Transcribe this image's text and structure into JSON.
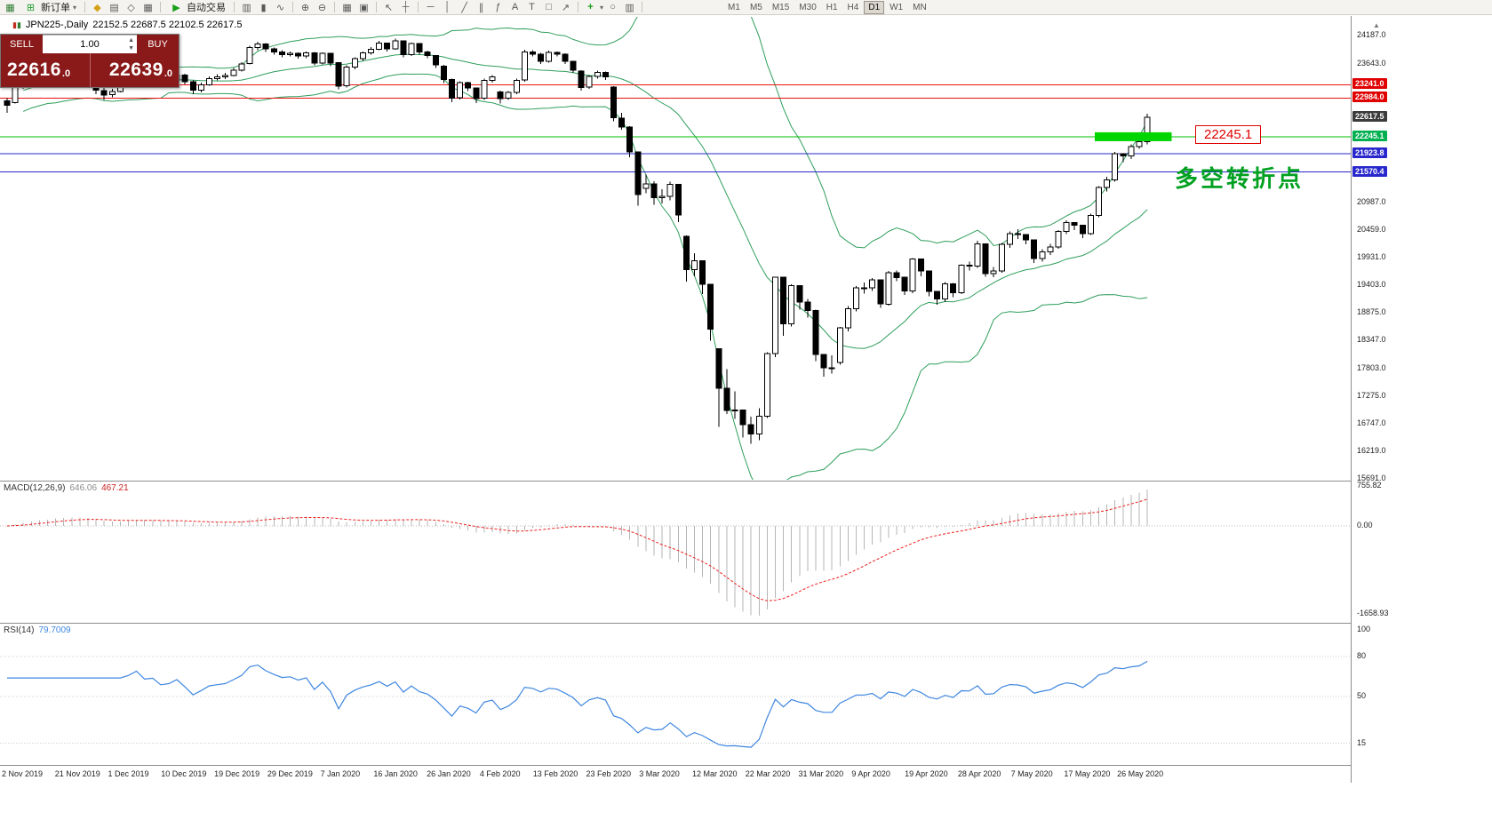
{
  "toolbar": {
    "new_order_label": "新订单",
    "autotrade_label": "自动交易",
    "timeframes": [
      "M1",
      "M5",
      "M15",
      "M30",
      "H1",
      "H4",
      "D1",
      "W1",
      "MN"
    ],
    "active_timeframe": "D1"
  },
  "trade_panel": {
    "sell_label": "SELL",
    "buy_label": "BUY",
    "volume": "1.00",
    "sell_price": "22616.0",
    "buy_price": "22639.0",
    "panel_color": "#8a1919"
  },
  "annotations": {
    "price_label": "22245.1",
    "note_text": "多空转折点"
  },
  "price_scale": {
    "labels": [
      {
        "text": "24187.0",
        "value": 24187.0
      },
      {
        "text": "23643.0",
        "value": 23643.0
      },
      {
        "text": "20987.0",
        "value": 20987.0
      },
      {
        "text": "20459.0",
        "value": 20459.0
      },
      {
        "text": "19931.0",
        "value": 19931.0
      },
      {
        "text": "19403.0",
        "value": 19403.0
      },
      {
        "text": "18875.0",
        "value": 18875.0
      },
      {
        "text": "18347.0",
        "value": 18347.0
      },
      {
        "text": "17803.0",
        "value": 17803.0
      },
      {
        "text": "17275.0",
        "value": 17275.0
      },
      {
        "text": "16747.0",
        "value": 16747.0
      },
      {
        "text": "16219.0",
        "value": 16219.0
      },
      {
        "text": "15691.0",
        "value": 15691.0
      }
    ],
    "tags": [
      {
        "text": "23241.0",
        "value": 23241.0,
        "bg": "#e00000",
        "fg": "#ffffff"
      },
      {
        "text": "22984.0",
        "value": 22984.0,
        "bg": "#e00000",
        "fg": "#ffffff"
      },
      {
        "text": "22617.5",
        "value": 22617.5,
        "bg": "#3c3c3c",
        "fg": "#ffffff"
      },
      {
        "text": "22245.1",
        "value": 22245.1,
        "bg": "#00b050",
        "fg": "#ffffff"
      },
      {
        "text": "21923.8",
        "value": 21923.8,
        "bg": "#2828cc",
        "fg": "#ffffff"
      },
      {
        "text": "21570.4",
        "value": 21570.4,
        "bg": "#2828cc",
        "fg": "#ffffff"
      }
    ]
  },
  "chart_data": {
    "type": "candlestick",
    "symbol": "JPN225",
    "timeframe": "Daily",
    "title": "JPN225-,Daily",
    "ohlc_display": "22152.5 22687.5 22102.5 22617.5",
    "last_candle": {
      "open": 22152.5,
      "high": 22687.5,
      "low": 22102.5,
      "close": 22617.5
    },
    "visible_price_range": [
      15550,
      24550
    ],
    "dates": [
      "2 Nov 2019",
      "21 Nov 2019",
      "1 Dec 2019",
      "10 Dec 2019",
      "19 Dec 2019",
      "29 Dec 2019",
      "7 Jan 2020",
      "16 Jan 2020",
      "26 Jan 2020",
      "4 Feb 2020",
      "13 Feb 2020",
      "23 Feb 2020",
      "3 Mar 2020",
      "12 Mar 2020",
      "22 Mar 2020",
      "31 Mar 2020",
      "9 Apr 2020",
      "19 Apr 2020",
      "28 Apr 2020",
      "7 May 2020",
      "17 May 2020",
      "26 May 2020"
    ],
    "hlines": [
      {
        "value": 23241.0,
        "color": "#ee1111"
      },
      {
        "value": 22984.0,
        "color": "#ee1111"
      },
      {
        "value": 22245.1,
        "color": "#00c000"
      },
      {
        "value": 21923.8,
        "color": "#2828cc"
      },
      {
        "value": 21570.4,
        "color": "#2828cc"
      }
    ],
    "highlight_rect": {
      "price": 22245.1,
      "from_candle": 134.5,
      "to_candle": 144,
      "color": "#00d500"
    },
    "indicators": {
      "bollinger": {
        "period": 20,
        "deviation": 2,
        "color": "#2e9e5b"
      },
      "macd": {
        "label": "MACD(12,26,9)",
        "main_value": "646.06",
        "signal_value": "467.21",
        "histogram_color": "#b6b6b6",
        "signal_color": "#ee2020",
        "scale_labels": [
          {
            "text": "755.82",
            "value": 755.82
          },
          {
            "text": "0.00",
            "value": 0
          },
          {
            "text": "-1658.93",
            "value": -1658.93
          }
        ]
      },
      "rsi": {
        "label": "RSI(14)",
        "value": "79.7009",
        "color": "#3e86e0",
        "scale_labels": [
          {
            "text": "100",
            "value": 100
          },
          {
            "text": "80",
            "value": 80
          },
          {
            "text": "50",
            "value": 50
          },
          {
            "text": "15",
            "value": 15
          }
        ],
        "level_lines": [
          80,
          50,
          15
        ]
      }
    },
    "candles": [
      [
        22930,
        22980,
        22705,
        22850
      ],
      [
        22900,
        23290,
        22880,
        23250
      ],
      [
        23255,
        23350,
        23160,
        23300
      ],
      [
        23300,
        23380,
        23250,
        23330
      ],
      [
        23330,
        23430,
        23280,
        23390
      ],
      [
        23390,
        23420,
        23270,
        23330
      ],
      [
        23340,
        23560,
        23310,
        23520
      ],
      [
        23510,
        23550,
        23380,
        23420
      ],
      [
        23420,
        23500,
        23360,
        23450
      ],
      [
        23450,
        23480,
        23330,
        23380
      ],
      [
        23380,
        23400,
        23250,
        23300
      ],
      [
        23290,
        23320,
        23060,
        23140
      ],
      [
        23130,
        23180,
        22950,
        23040
      ],
      [
        23050,
        23160,
        23000,
        23110
      ],
      [
        23110,
        23330,
        23090,
        23290
      ],
      [
        23290,
        23410,
        23260,
        23370
      ],
      [
        23380,
        23550,
        23350,
        23520
      ],
      [
        23520,
        23540,
        23330,
        23380
      ],
      [
        23380,
        23460,
        23340,
        23410
      ],
      [
        23410,
        23430,
        23240,
        23290
      ],
      [
        23290,
        23370,
        23230,
        23320
      ],
      [
        23320,
        23460,
        23290,
        23430
      ],
      [
        23430,
        23450,
        23250,
        23300
      ],
      [
        23300,
        23320,
        23060,
        23140
      ],
      [
        23140,
        23280,
        23090,
        23240
      ],
      [
        23240,
        23400,
        23220,
        23360
      ],
      [
        23360,
        23440,
        23320,
        23390
      ],
      [
        23390,
        23470,
        23350,
        23420
      ],
      [
        23420,
        23560,
        23400,
        23520
      ],
      [
        23520,
        23670,
        23490,
        23640
      ],
      [
        23650,
        23990,
        23630,
        23950
      ],
      [
        23950,
        24060,
        23900,
        24020
      ],
      [
        24020,
        24040,
        23870,
        23930
      ],
      [
        23930,
        23950,
        23820,
        23870
      ],
      [
        23870,
        23900,
        23770,
        23820
      ],
      [
        23820,
        23880,
        23780,
        23840
      ],
      [
        23840,
        23860,
        23740,
        23790
      ],
      [
        23790,
        23880,
        23750,
        23850
      ],
      [
        23850,
        23870,
        23610,
        23660
      ],
      [
        23660,
        23860,
        23630,
        23840
      ],
      [
        23840,
        23850,
        23600,
        23660
      ],
      [
        23660,
        23670,
        23150,
        23210
      ],
      [
        23220,
        23610,
        23190,
        23580
      ],
      [
        23580,
        23770,
        23540,
        23740
      ],
      [
        23740,
        23880,
        23700,
        23850
      ],
      [
        23850,
        23960,
        23820,
        23920
      ],
      [
        23920,
        24080,
        23900,
        24040
      ],
      [
        24040,
        24050,
        23880,
        23930
      ],
      [
        23930,
        24120,
        23910,
        24080
      ],
      [
        24080,
        24090,
        23770,
        23820
      ],
      [
        23820,
        24050,
        23790,
        24030
      ],
      [
        24030,
        24040,
        23820,
        23870
      ],
      [
        23870,
        23890,
        23750,
        23800
      ],
      [
        23800,
        23810,
        23560,
        23620
      ],
      [
        23600,
        23620,
        23270,
        23340
      ],
      [
        23340,
        23360,
        22910,
        22980
      ],
      [
        22990,
        23310,
        22960,
        23280
      ],
      [
        23280,
        23300,
        23120,
        23180
      ],
      [
        23180,
        23190,
        22890,
        22970
      ],
      [
        22980,
        23360,
        22950,
        23320
      ],
      [
        23320,
        23430,
        23280,
        23390
      ],
      [
        23100,
        23130,
        22880,
        22970
      ],
      [
        22980,
        23120,
        22950,
        23090
      ],
      [
        23090,
        23360,
        23060,
        23320
      ],
      [
        23330,
        23910,
        23300,
        23870
      ],
      [
        23870,
        23900,
        23780,
        23830
      ],
      [
        23830,
        23850,
        23640,
        23690
      ],
      [
        23690,
        23890,
        23660,
        23860
      ],
      [
        23860,
        23880,
        23780,
        23830
      ],
      [
        23830,
        23840,
        23640,
        23690
      ],
      [
        23690,
        23700,
        23470,
        23520
      ],
      [
        23500,
        23520,
        23130,
        23190
      ],
      [
        23200,
        23430,
        23160,
        23400
      ],
      [
        23400,
        23510,
        23360,
        23480
      ],
      [
        23480,
        23490,
        23330,
        23390
      ],
      [
        23200,
        23210,
        22540,
        22610
      ],
      [
        22600,
        22700,
        22380,
        22430
      ],
      [
        22430,
        22450,
        21850,
        21950
      ],
      [
        21950,
        21960,
        20920,
        21140
      ],
      [
        21260,
        21520,
        21160,
        21340
      ],
      [
        21340,
        21390,
        20940,
        21080
      ],
      [
        21080,
        21240,
        20970,
        21100
      ],
      [
        21100,
        21380,
        21030,
        21330
      ],
      [
        21330,
        21340,
        20610,
        20750
      ],
      [
        20340,
        20350,
        19470,
        19700
      ],
      [
        19700,
        20010,
        19570,
        19870
      ],
      [
        19870,
        19880,
        19230,
        19420
      ],
      [
        19420,
        19430,
        18340,
        18560
      ],
      [
        18180,
        18190,
        16690,
        17430
      ],
      [
        17430,
        17790,
        16930,
        17000
      ],
      [
        17000,
        17370,
        16840,
        17010
      ],
      [
        17010,
        17020,
        16480,
        16730
      ],
      [
        16730,
        16880,
        16360,
        16550
      ],
      [
        16550,
        17040,
        16430,
        16890
      ],
      [
        16890,
        18120,
        16860,
        18090
      ],
      [
        18090,
        19560,
        18020,
        19550
      ],
      [
        19550,
        19560,
        18430,
        18660
      ],
      [
        18660,
        19420,
        18610,
        19390
      ],
      [
        19390,
        19400,
        18930,
        19080
      ],
      [
        19080,
        19140,
        18780,
        18920
      ],
      [
        18920,
        18930,
        17950,
        18070
      ],
      [
        18070,
        18080,
        17650,
        17820
      ],
      [
        17820,
        18060,
        17710,
        17820
      ],
      [
        17920,
        18600,
        17880,
        18580
      ],
      [
        18580,
        19000,
        18520,
        18950
      ],
      [
        18950,
        19380,
        18900,
        19350
      ],
      [
        19350,
        19450,
        19240,
        19350
      ],
      [
        19350,
        19540,
        19290,
        19500
      ],
      [
        19500,
        19510,
        18970,
        19040
      ],
      [
        19040,
        19670,
        19010,
        19640
      ],
      [
        19640,
        19680,
        19480,
        19550
      ],
      [
        19550,
        19560,
        19210,
        19290
      ],
      [
        19290,
        19920,
        19250,
        19900
      ],
      [
        19900,
        19910,
        19570,
        19670
      ],
      [
        19670,
        19680,
        19190,
        19280
      ],
      [
        19280,
        19290,
        19030,
        19140
      ],
      [
        19140,
        19460,
        19080,
        19430
      ],
      [
        19430,
        19440,
        19170,
        19260
      ],
      [
        19260,
        19800,
        19230,
        19780
      ],
      [
        19780,
        19850,
        19680,
        19770
      ],
      [
        19770,
        20250,
        19730,
        20190
      ],
      [
        20190,
        20190,
        19560,
        19620
      ],
      [
        19620,
        19750,
        19550,
        19670
      ],
      [
        19670,
        20210,
        19640,
        20180
      ],
      [
        20180,
        20430,
        20120,
        20390
      ],
      [
        20390,
        20470,
        20290,
        20370
      ],
      [
        20370,
        20380,
        20180,
        20270
      ],
      [
        20270,
        20280,
        19830,
        19910
      ],
      [
        19910,
        20090,
        19850,
        20040
      ],
      [
        20040,
        20190,
        19980,
        20130
      ],
      [
        20130,
        20460,
        20100,
        20430
      ],
      [
        20430,
        20640,
        20380,
        20600
      ],
      [
        20600,
        20610,
        20460,
        20550
      ],
      [
        20550,
        20560,
        20300,
        20390
      ],
      [
        20390,
        20770,
        20360,
        20740
      ],
      [
        20740,
        21300,
        20700,
        21270
      ],
      [
        21270,
        21480,
        21200,
        21420
      ],
      [
        21420,
        21950,
        21380,
        21920
      ],
      [
        21920,
        21930,
        21760,
        21880
      ],
      [
        21880,
        22100,
        21820,
        22060
      ],
      [
        22060,
        22330,
        22010,
        22150
      ],
      [
        22152.5,
        22687.5,
        22102.5,
        22617.5
      ]
    ]
  }
}
